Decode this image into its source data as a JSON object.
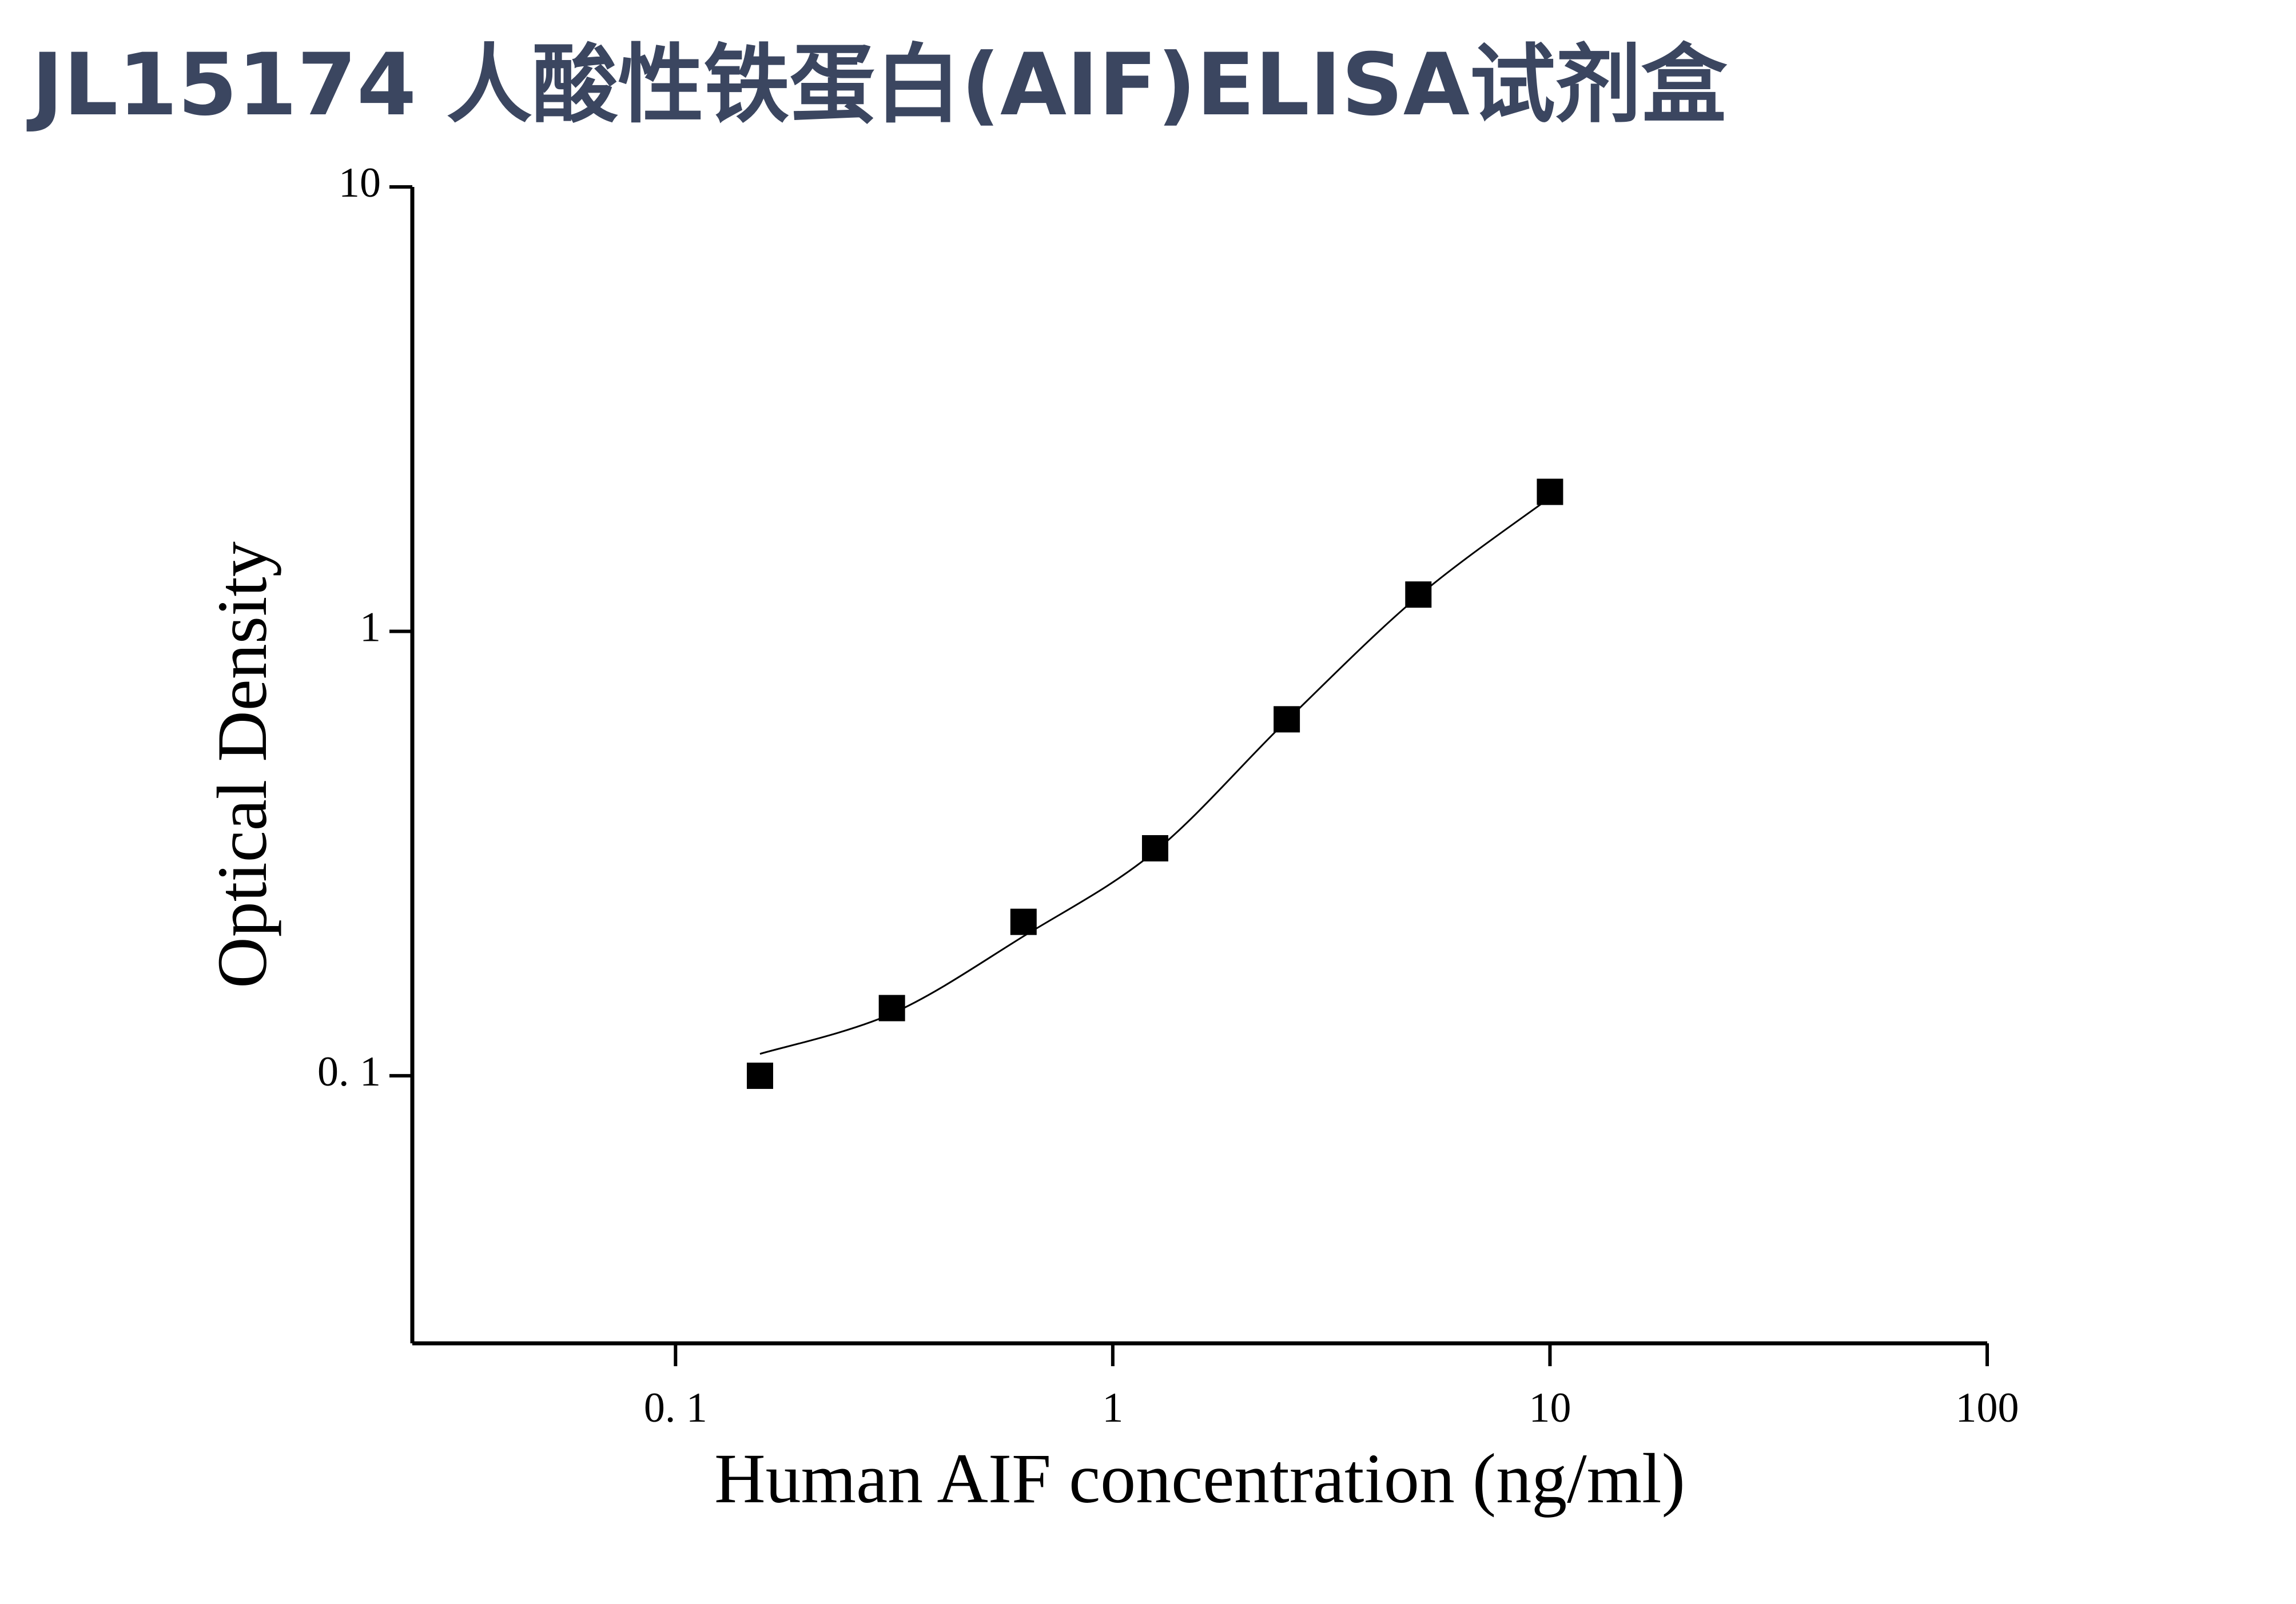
{
  "chart_data": {
    "type": "scatter",
    "title": "JL15174 人酸性铁蛋白(AIF)ELISA试剂盒",
    "x_label": "Human AIF concentration (ng/ml)",
    "y_label": "Optical Density",
    "x_log": true,
    "y_log": true,
    "xlim": [
      0.025,
      100
    ],
    "ylim": [
      0.025,
      10
    ],
    "xticks": [
      {
        "value": 0.1,
        "label": "0. 1"
      },
      1,
      10,
      100
    ],
    "yticks": [
      {
        "value": 0.1,
        "label": "0. 1"
      },
      1,
      10
    ],
    "series": [
      {
        "style": "marker",
        "color": "#000000",
        "x": [
          0.156,
          0.3125,
          0.625,
          1.25,
          2.5,
          5,
          10
        ],
        "values": [
          0.1,
          0.142,
          0.222,
          0.325,
          0.634,
          1.21,
          2.06
        ]
      },
      {
        "style": "line",
        "color": "#000000",
        "x": [
          0.156,
          0.3125,
          0.625,
          1.25,
          2.5,
          5,
          10
        ],
        "values": [
          0.112,
          0.138,
          0.206,
          0.32,
          0.63,
          1.2,
          2.0
        ]
      }
    ]
  }
}
